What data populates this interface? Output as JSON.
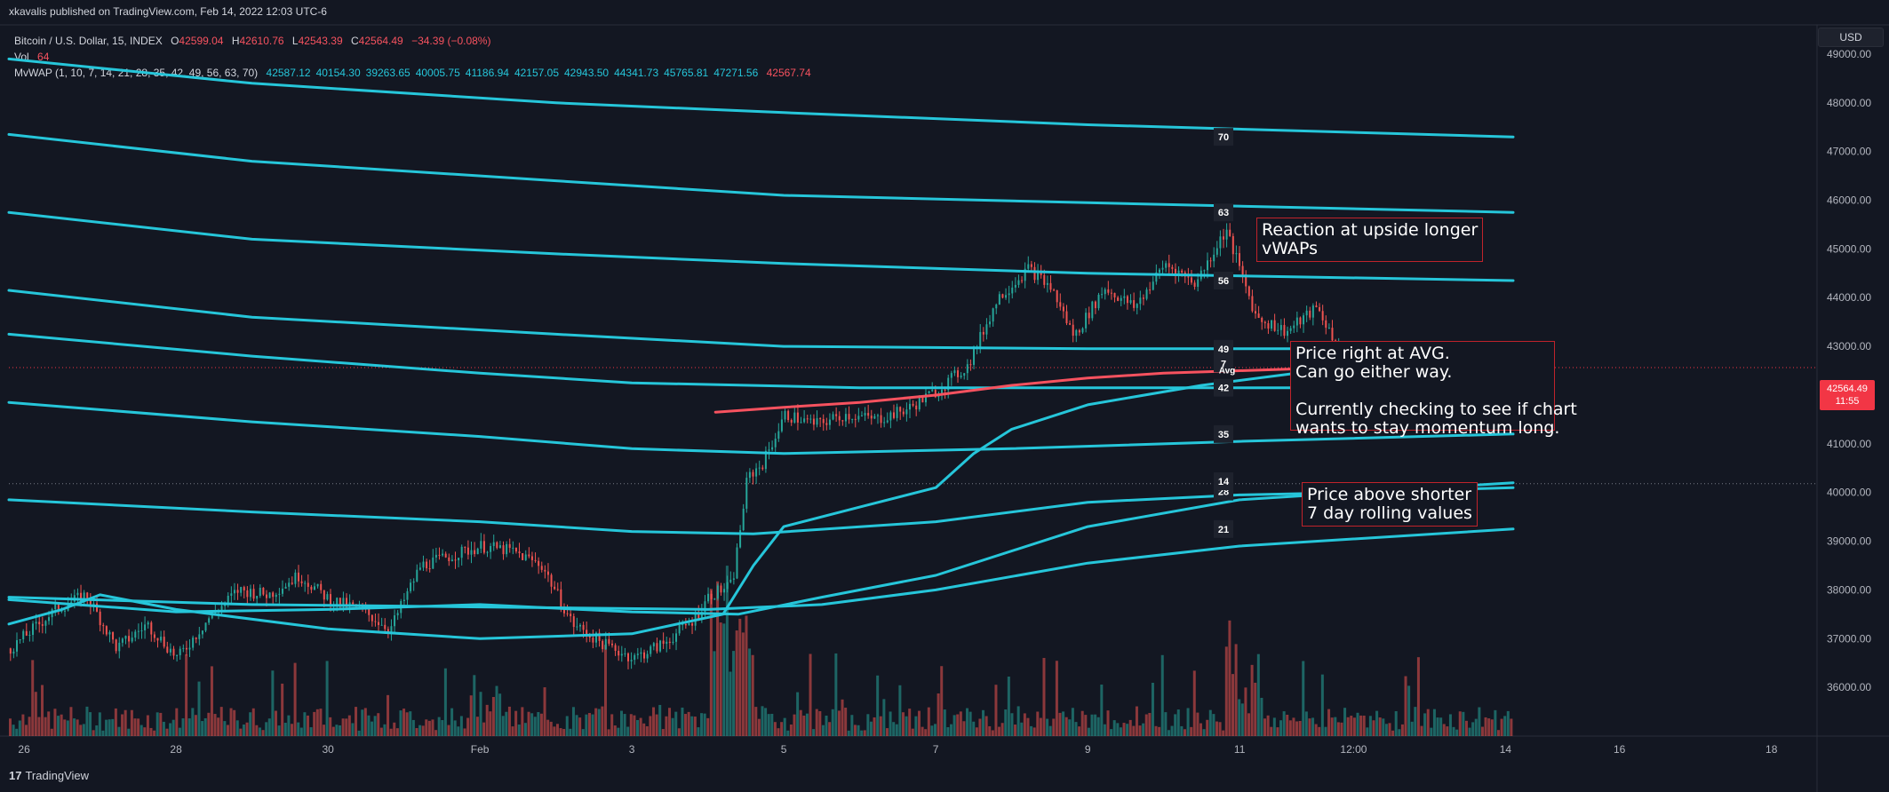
{
  "publisher_line": "xkavalis published on TradingView.com, Feb 14, 2022 12:03 UTC-6",
  "legend": {
    "symbol": "Bitcoin / U.S. Dollar, 15, INDEX",
    "open_label": "O",
    "open": "42599.04",
    "high_label": "H",
    "high": "42610.76",
    "low_label": "L",
    "low": "42543.39",
    "close_label": "C",
    "close": "42564.49",
    "change": "−34.39 (−0.08%)",
    "vol_label": "Vol",
    "vol": "64",
    "mvwap_label": "MvWAP (1, 10, 7, 14, 21, 28, 35, 42, 49, 56, 63, 70)",
    "mvwap_values": [
      "42587.12",
      "40154.30",
      "39263.65",
      "40005.75",
      "41186.94",
      "42157.05",
      "42943.50",
      "44341.73",
      "45765.81",
      "47271.56"
    ],
    "mvwap_last": "42567.74"
  },
  "currency_button": "USD",
  "price_tag": {
    "price": "42564.49",
    "countdown": "11:55"
  },
  "annotations": [
    "Reaction at upside longer\nvWAPs",
    "Price right at AVG.\nCan go either way.\n\nCurrently checking to see if chart\nwants to stay momentum long.",
    "Price above shorter\n7 day rolling values"
  ],
  "footer_brand": "TradingView",
  "footer_logo": "17",
  "colors": {
    "background": "#131722",
    "vwap": "#26c6da",
    "avg": "#f7525f",
    "up": "#26a69a",
    "down": "#ef5350",
    "note_border": "#c0232b"
  },
  "chart_data": {
    "type": "line",
    "ylim": [
      35000,
      49600
    ],
    "y_ticks": [
      36000,
      37000,
      38000,
      39000,
      40000,
      41000,
      42000,
      43000,
      44000,
      45000,
      46000,
      47000,
      48000,
      49000
    ],
    "y_tick_labels": [
      "36000.00",
      "37000.00",
      "38000.00",
      "39000.00",
      "40000.00",
      "41000.00",
      "42000.00",
      "43000.00",
      "44000.00",
      "45000.00",
      "46000.00",
      "47000.00",
      "48000.00",
      "49000.00"
    ],
    "x_range_days": [
      -0.2,
      23.6
    ],
    "x_ticks": [
      {
        "t": 0,
        "label": "26"
      },
      {
        "t": 2,
        "label": "28"
      },
      {
        "t": 4,
        "label": "30"
      },
      {
        "t": 6,
        "label": "Feb"
      },
      {
        "t": 8,
        "label": "3"
      },
      {
        "t": 10,
        "label": "5"
      },
      {
        "t": 12,
        "label": "7"
      },
      {
        "t": 14,
        "label": "9"
      },
      {
        "t": 16,
        "label": "11"
      },
      {
        "t": 17.5,
        "label": "12:00"
      },
      {
        "t": 19.5,
        "label": "14"
      },
      {
        "t": 21,
        "label": "16"
      },
      {
        "t": 23,
        "label": "18"
      },
      {
        "t": 24.5,
        "label": "12:00"
      }
    ],
    "series": [
      {
        "name": "70",
        "x": [
          -0.2,
          3,
          7,
          10,
          14,
          19.6
        ],
        "y": [
          48900,
          48400,
          48000,
          47800,
          47550,
          47300
        ]
      },
      {
        "name": "63",
        "x": [
          -0.2,
          3,
          7,
          10,
          14,
          19.6
        ],
        "y": [
          47350,
          46800,
          46400,
          46100,
          45950,
          45750
        ]
      },
      {
        "name": "56",
        "x": [
          -0.2,
          3,
          7,
          10,
          14,
          19.6
        ],
        "y": [
          45750,
          45200,
          44900,
          44700,
          44500,
          44350
        ]
      },
      {
        "name": "49",
        "x": [
          -0.2,
          3,
          7,
          10,
          14,
          19.6
        ],
        "y": [
          44150,
          43600,
          43250,
          43000,
          42950,
          42950
        ]
      },
      {
        "name": "42",
        "x": [
          -0.2,
          3,
          6,
          8,
          11,
          14,
          19.6
        ],
        "y": [
          43250,
          42800,
          42450,
          42250,
          42150,
          42150,
          42150
        ]
      },
      {
        "name": "35",
        "x": [
          -0.2,
          3,
          6,
          8,
          10,
          13,
          16,
          19.6
        ],
        "y": [
          41850,
          41450,
          41150,
          40900,
          40800,
          40900,
          41050,
          41200
        ]
      },
      {
        "name": "28",
        "x": [
          -0.2,
          3,
          6,
          8,
          9.6,
          12,
          14,
          16,
          17.5,
          19.6
        ],
        "y": [
          39850,
          39600,
          39400,
          39200,
          39150,
          39400,
          39800,
          39950,
          40000,
          40100
        ]
      },
      {
        "name": "21",
        "x": [
          -0.2,
          3,
          6,
          9,
          10.5,
          12,
          14,
          16,
          19.6
        ],
        "y": [
          37850,
          37700,
          37650,
          37600,
          37700,
          38000,
          38550,
          38900,
          39250
        ]
      },
      {
        "name": "14",
        "x": [
          -0.2,
          2,
          4,
          6,
          8,
          9.4,
          10.5,
          12,
          14,
          16,
          17.5,
          19.6
        ],
        "y": [
          37800,
          37550,
          37600,
          37700,
          37550,
          37500,
          37850,
          38300,
          39300,
          39850,
          40000,
          40200
        ]
      },
      {
        "name": "7",
        "x": [
          -0.2,
          0.5,
          1,
          2,
          4,
          6,
          8,
          9.2,
          9.6,
          10,
          11,
          12,
          12.5,
          13,
          14,
          15.5,
          17,
          19.6
        ],
        "y": [
          37300,
          37600,
          37900,
          37600,
          37200,
          37000,
          37100,
          37500,
          38500,
          39300,
          39700,
          40100,
          40800,
          41300,
          41800,
          42200,
          42500,
          42600
        ]
      },
      {
        "name": "Avg",
        "x": [
          9.1,
          10,
          11,
          12,
          13,
          14,
          15,
          16,
          17,
          19.6
        ],
        "y": [
          41650,
          41750,
          41850,
          42000,
          42200,
          42350,
          42450,
          42500,
          42550,
          42560
        ]
      }
    ],
    "price_path": {
      "t": [
        -0.2,
        0.4,
        0.8,
        1.2,
        1.6,
        2.0,
        2.4,
        2.8,
        3.2,
        3.6,
        4.0,
        4.4,
        4.8,
        5.2,
        5.6,
        6.0,
        6.4,
        6.8,
        7.2,
        7.6,
        8.0,
        8.4,
        8.8,
        9.0,
        9.3,
        9.5,
        9.7,
        10.0,
        10.4,
        10.8,
        11.2,
        11.6,
        12.0,
        12.4,
        12.8,
        13.2,
        13.5,
        13.8,
        14.2,
        14.6,
        15.0,
        15.4,
        15.8,
        16.2,
        16.6,
        17.0,
        17.4,
        17.8,
        18.2,
        18.6,
        19.0,
        19.4,
        19.6
      ],
      "y": [
        36800,
        37600,
        37900,
        36800,
        37300,
        36600,
        37400,
        38000,
        37900,
        38300,
        37800,
        37600,
        37200,
        38500,
        38700,
        38900,
        38800,
        38500,
        37300,
        36900,
        36600,
        36900,
        37400,
        37900,
        38100,
        40300,
        40600,
        41600,
        41400,
        41600,
        41500,
        41700,
        42100,
        42600,
        44000,
        44600,
        44200,
        43200,
        44200,
        43800,
        44700,
        44300,
        45400,
        43600,
        43300,
        43800,
        42600,
        42300,
        42500,
        42700,
        42300,
        42600,
        42600
      ]
    },
    "current_price": 42564.49
  }
}
